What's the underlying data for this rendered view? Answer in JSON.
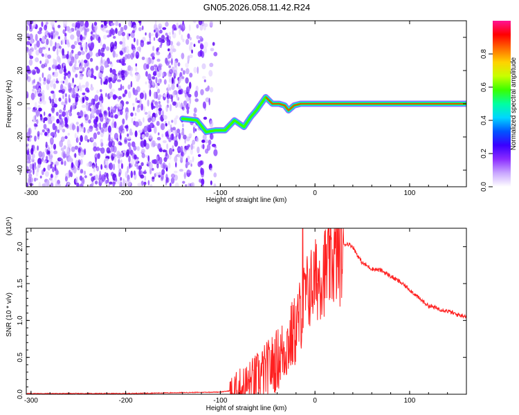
{
  "title": "GN05.2026.058.11.42.R24",
  "chart_data": [
    {
      "type": "heatmap",
      "xlabel": "Height of straight line (km)",
      "ylabel": "Frequency (Hz)",
      "xlim": [
        -305,
        160
      ],
      "ylim": [
        -50,
        50
      ],
      "xticks": [
        -300,
        -200,
        -100,
        0,
        100
      ],
      "yticks": [
        -40,
        -20,
        0,
        20,
        40
      ],
      "colorbar": {
        "label": "Normalized spectral amplitude",
        "range": [
          0,
          1
        ],
        "ticks": [
          "0.0",
          "0.2",
          "0.4",
          "0.6",
          "0.8"
        ],
        "colors": [
          "#ffffff",
          "#c9a6ff",
          "#8b2cff",
          "#3a00ff",
          "#0055ff",
          "#00d6ff",
          "#00ffa0",
          "#39ff00",
          "#c8ff00",
          "#ffd200",
          "#ff6a00",
          "#ff0000",
          "#ff1493"
        ]
      },
      "noise_region_x": [
        -305,
        -105
      ],
      "signal_track": {
        "x": [
          -140,
          -125,
          -115,
          -105,
          -95,
          -85,
          -75,
          -68,
          -62,
          -57,
          -52,
          -45,
          -38,
          -32,
          -28,
          -22,
          -15,
          -5,
          0,
          50,
          100,
          160
        ],
        "freq": [
          -9,
          -10,
          -17,
          -16,
          -16,
          -10,
          -14,
          -8,
          -4,
          0,
          4,
          0,
          0,
          -1,
          -4,
          -1,
          0,
          0,
          0,
          0,
          0,
          0
        ]
      }
    },
    {
      "type": "line",
      "xlabel": "Height of straight line (km)",
      "ylabel": "SNR (10 * v/v)",
      "y_multiplier": "(x10⁴)",
      "xlim": [
        -305,
        160
      ],
      "ylim": [
        0,
        2.25
      ],
      "xticks": [
        -300,
        -200,
        -100,
        0,
        100
      ],
      "yticks": [
        "0.0",
        "0.5",
        "1.0",
        "1.5",
        "2.0"
      ],
      "series": [
        {
          "color": "#ff2020",
          "x": [
            -305,
            -250,
            -200,
            -150,
            -100,
            -88,
            -80,
            -70,
            -60,
            -50,
            -40,
            -30,
            -20,
            -13,
            -10,
            0,
            10,
            20,
            25,
            30,
            35,
            40,
            45,
            50,
            60,
            70,
            80,
            90,
            100,
            110,
            120,
            130,
            140,
            150,
            160
          ],
          "y": [
            0.01,
            0.01,
            0.01,
            0.02,
            0.03,
            0.05,
            0.12,
            0.2,
            0.3,
            0.42,
            0.55,
            0.75,
            0.98,
            1.3,
            1.45,
            1.65,
            1.8,
            1.95,
            2.0,
            2.03,
            2.04,
            2.0,
            1.88,
            1.78,
            1.7,
            1.68,
            1.6,
            1.52,
            1.42,
            1.3,
            1.2,
            1.16,
            1.13,
            1.08,
            1.06
          ]
        }
      ]
    }
  ]
}
